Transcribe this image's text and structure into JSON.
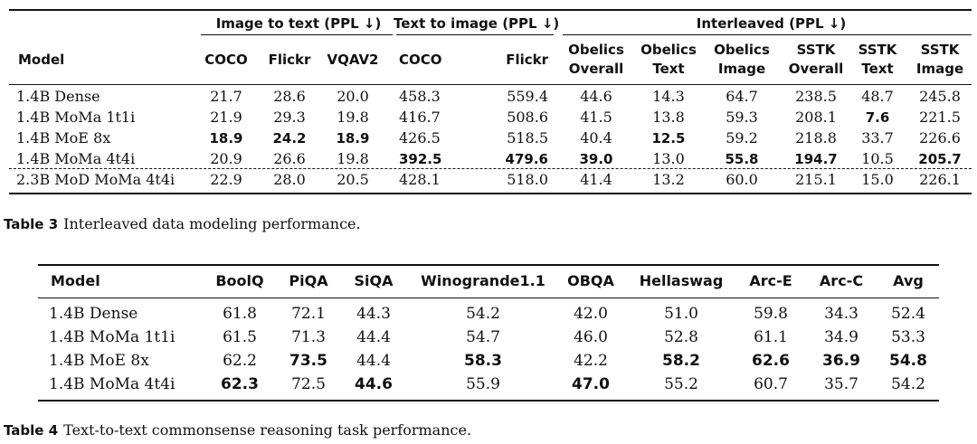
{
  "table3": {
    "group_headers": [
      "Image to text (PPL ↓)",
      "Text to image (PPL ↓)",
      "Interleaved (PPL ↓)"
    ],
    "columns": [
      "Model",
      "COCO",
      "Flickr",
      "VQAV2",
      "COCO",
      "Flickr",
      "Obelics Overall",
      "Obelics Text",
      "Obelics Image",
      "SSTK Overall",
      "SSTK Text",
      "SSTK Image"
    ],
    "rows": [
      {
        "model": "1.4B Dense",
        "values": [
          "21.7",
          "28.6",
          "20.0",
          "458.3",
          "559.4",
          "44.6",
          "14.3",
          "64.7",
          "238.5",
          "48.7",
          "245.8"
        ]
      },
      {
        "model": "1.4B MoMa 1t1i",
        "values": [
          "21.9",
          "29.3",
          "19.8",
          "416.7",
          "508.6",
          "41.5",
          "13.8",
          "59.3",
          "208.1",
          "7.6",
          "221.5"
        ]
      },
      {
        "model": "1.4B MoE 8x",
        "values": [
          "18.9",
          "24.2",
          "18.9",
          "426.5",
          "518.5",
          "40.4",
          "12.5",
          "59.2",
          "218.8",
          "33.7",
          "226.6"
        ]
      },
      {
        "model": "1.4B MoMa 4t4i",
        "values": [
          "20.9",
          "26.6",
          "19.8",
          "392.5",
          "479.6",
          "39.0",
          "13.0",
          "55.8",
          "194.7",
          "10.5",
          "205.7"
        ]
      },
      {
        "model": "2.3B MoD MoMa 4t4i",
        "values": [
          "22.9",
          "28.0",
          "20.5",
          "428.1",
          "518.0",
          "41.4",
          "13.2",
          "60.0",
          "215.1",
          "15.0",
          "226.1"
        ]
      }
    ],
    "bold": [
      [
        2,
        0
      ],
      [
        2,
        1
      ],
      [
        2,
        2
      ],
      [
        3,
        3
      ],
      [
        3,
        4
      ],
      [
        3,
        5
      ],
      [
        2,
        6
      ],
      [
        3,
        7
      ],
      [
        3,
        8
      ],
      [
        1,
        9
      ],
      [
        3,
        10
      ]
    ],
    "caption_label": "Table 3",
    "caption_text": "Interleaved data modeling performance."
  },
  "table4": {
    "columns": [
      "Model",
      "BoolQ",
      "PiQA",
      "SiQA",
      "Winogrande1.1",
      "OBQA",
      "Hellaswag",
      "Arc-E",
      "Arc-C",
      "Avg"
    ],
    "rows": [
      {
        "model": "1.4B Dense",
        "values": [
          "61.8",
          "72.1",
          "44.3",
          "54.2",
          "42.0",
          "51.0",
          "59.8",
          "34.3",
          "52.4"
        ]
      },
      {
        "model": "1.4B MoMa 1t1i",
        "values": [
          "61.5",
          "71.3",
          "44.4",
          "54.7",
          "46.0",
          "52.8",
          "61.1",
          "34.9",
          "53.3"
        ]
      },
      {
        "model": "1.4B MoE 8x",
        "values": [
          "62.2",
          "73.5",
          "44.4",
          "58.3",
          "42.2",
          "58.2",
          "62.6",
          "36.9",
          "54.8"
        ]
      },
      {
        "model": "1.4B MoMa 4t4i",
        "values": [
          "62.3",
          "72.5",
          "44.6",
          "55.9",
          "47.0",
          "55.2",
          "60.7",
          "35.7",
          "54.2"
        ]
      }
    ],
    "bold": [
      [
        2,
        1
      ],
      [
        2,
        3
      ],
      [
        2,
        5
      ],
      [
        2,
        6
      ],
      [
        2,
        7
      ],
      [
        2,
        8
      ],
      [
        3,
        0
      ],
      [
        3,
        2
      ],
      [
        3,
        4
      ]
    ],
    "caption_label": "Table 4",
    "caption_text": "Text-to-text commonsense reasoning task performance."
  }
}
